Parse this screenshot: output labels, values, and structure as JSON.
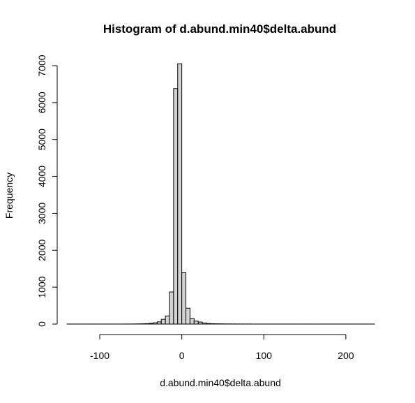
{
  "chart_data": {
    "type": "bar",
    "title": "Histogram of d.abund.min40$delta.abund",
    "xlabel": "d.abund.min40$delta.abund",
    "ylabel": "Frequency",
    "xlim": [
      -140,
      235
    ],
    "ylim": [
      0,
      7000
    ],
    "x_ticks": [
      "-100",
      "0",
      "100",
      "200"
    ],
    "y_ticks": [
      "0",
      "1000",
      "2000",
      "3000",
      "4000",
      "5000",
      "6000",
      "7000"
    ],
    "bin_width": 5,
    "bin_edges_start": -140,
    "values": [
      1,
      1,
      1,
      1,
      1,
      1,
      1,
      1,
      1,
      1,
      1,
      1,
      1,
      1,
      2,
      2,
      3,
      5,
      8,
      12,
      20,
      35,
      60,
      130,
      220,
      870,
      6380,
      7050,
      1390,
      430,
      150,
      80,
      55,
      30,
      15,
      10,
      8,
      6,
      5,
      4,
      3,
      3,
      2,
      2,
      2,
      1,
      1,
      1,
      1,
      1,
      1,
      1,
      1,
      1,
      1,
      1,
      1,
      1,
      1,
      1,
      1,
      1,
      1,
      1,
      1,
      1,
      1,
      1,
      1,
      1,
      1,
      1,
      1,
      1,
      1
    ],
    "bar_color": "#d3d3d3",
    "grid": false,
    "legend": "none"
  }
}
